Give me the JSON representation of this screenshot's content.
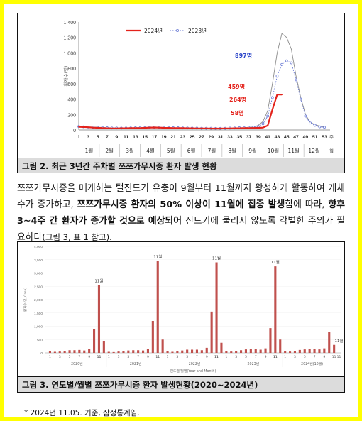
{
  "figure1": {
    "caption": "그림 2. 최근 3년간 주차별 쯔쯔가무시증 환자 발생 현황",
    "chart_data": {
      "type": "line",
      "ylabel": "환자수(명)",
      "ylim": [
        0,
        1400
      ],
      "yticks": [
        0,
        200,
        400,
        600,
        800,
        1000,
        1200,
        1400
      ],
      "x_ticks": [
        "1",
        "3",
        "5",
        "7",
        "9",
        "11",
        "13",
        "15",
        "17",
        "19",
        "21",
        "23",
        "25",
        "27",
        "29",
        "31",
        "33",
        "35",
        "37",
        "39",
        "41",
        "43",
        "45",
        "47",
        "49",
        "51",
        "53"
      ],
      "x_suffix": "주",
      "months": [
        "1월",
        "2월",
        "3월",
        "4월",
        "5월",
        "6월",
        "7월",
        "8월",
        "9월",
        "10월",
        "11월",
        "12월"
      ],
      "x_unit_label": "월",
      "series": [
        {
          "name": "2024년",
          "color": "#e3221b",
          "x": [
            1,
            2,
            3,
            4,
            5,
            6,
            7,
            8,
            9,
            10,
            11,
            12,
            13,
            14,
            15,
            16,
            17,
            18,
            19,
            20,
            21,
            22,
            23,
            24,
            25,
            26,
            27,
            28,
            29,
            30,
            31,
            32,
            33,
            34,
            35,
            36,
            37,
            38,
            39,
            40,
            41,
            42,
            43,
            44
          ],
          "values": [
            40,
            38,
            35,
            30,
            28,
            25,
            22,
            20,
            20,
            22,
            22,
            24,
            25,
            25,
            28,
            30,
            32,
            30,
            28,
            27,
            25,
            25,
            24,
            22,
            22,
            20,
            20,
            20,
            18,
            18,
            18,
            20,
            20,
            22,
            22,
            24,
            25,
            26,
            28,
            30,
            58,
            264,
            459,
            459
          ]
        },
        {
          "name": "2023년",
          "color": "#6f7fd6",
          "x": [
            1,
            2,
            3,
            4,
            5,
            6,
            7,
            8,
            9,
            10,
            11,
            12,
            13,
            14,
            15,
            16,
            17,
            18,
            19,
            20,
            21,
            22,
            23,
            24,
            25,
            26,
            27,
            28,
            29,
            30,
            31,
            32,
            33,
            34,
            35,
            36,
            37,
            38,
            39,
            40,
            41,
            42,
            43,
            44,
            45,
            46,
            47,
            48,
            49,
            50,
            51,
            52,
            53
          ],
          "values": [
            45,
            40,
            38,
            35,
            32,
            30,
            28,
            25,
            25,
            24,
            25,
            26,
            28,
            30,
            30,
            32,
            35,
            34,
            32,
            30,
            28,
            28,
            26,
            25,
            24,
            24,
            22,
            22,
            22,
            20,
            20,
            22,
            24,
            25,
            28,
            30,
            32,
            35,
            45,
            80,
            180,
            420,
            700,
            850,
            897,
            870,
            650,
            400,
            180,
            90,
            60,
            40,
            35
          ]
        },
        {
          "name": "",
          "color": "#8c8c8c",
          "x": [
            1,
            2,
            3,
            4,
            5,
            6,
            7,
            8,
            9,
            10,
            11,
            12,
            13,
            14,
            15,
            16,
            17,
            18,
            19,
            20,
            21,
            22,
            23,
            24,
            25,
            26,
            27,
            28,
            29,
            30,
            31,
            32,
            33,
            34,
            35,
            36,
            37,
            38,
            39,
            40,
            41,
            42,
            43,
            44,
            45,
            46,
            47,
            48,
            49,
            50,
            51,
            52,
            53
          ],
          "values": [
            50,
            45,
            40,
            38,
            35,
            32,
            30,
            28,
            26,
            26,
            28,
            28,
            30,
            30,
            32,
            32,
            34,
            32,
            30,
            28,
            28,
            26,
            26,
            24,
            24,
            22,
            22,
            22,
            22,
            20,
            22,
            22,
            24,
            26,
            28,
            30,
            32,
            40,
            60,
            110,
            250,
            600,
            1000,
            1250,
            1200,
            1050,
            700,
            420,
            200,
            100,
            70,
            50,
            40
          ]
        }
      ],
      "annotations": [
        "897명",
        "459명",
        "264명",
        "58명"
      ]
    }
  },
  "paragraph": {
    "text1": "쯔쯔가무시증을 매개하는 털진드기 유충이 9월부터 11월까지 왕성하게 활동하여 개체 수가 증가하고, ",
    "bold1": "쯔쯔가무시증 환자의 50% 이상이 11월에 집중 발생",
    "text2": "함에 따라, ",
    "bold2": "향후 3~4주 간 환자가 증가할 것으로 예상되어",
    "text3": " 진드기에 물리지 않도록 각별한 주의가 필요하다",
    "ref": "(그림 3, 표 1 참고)."
  },
  "figure2": {
    "caption": "그림 3. 연도별/월별 쯔쯔가무시증 환자 발생현황(2020~2024년)",
    "chart_data": {
      "type": "bar",
      "ylabel": "환자수(명, Case)",
      "xlabel": "연도별/월별(Year and Month)",
      "ylim": [
        0,
        4000
      ],
      "yticks": [
        "0",
        "500",
        "1,000",
        "1,500",
        "2,000",
        "2,500",
        "3,000",
        "3,500",
        "4,000"
      ],
      "color": "#c0504d",
      "years": [
        "2020년",
        "2021년",
        "2022년",
        "2023년",
        "2024년(10월)"
      ],
      "months": [
        "1",
        "3",
        "5",
        "7",
        "9",
        "11"
      ],
      "peak_label": "11월",
      "values": [
        [
          60,
          40,
          50,
          80,
          100,
          100,
          110,
          90,
          150,
          900,
          2550,
          450
        ],
        [
          40,
          30,
          50,
          70,
          90,
          100,
          100,
          90,
          160,
          1200,
          3450,
          500
        ],
        [
          60,
          40,
          70,
          90,
          120,
          120,
          120,
          100,
          190,
          1550,
          3400,
          380
        ],
        [
          70,
          50,
          80,
          100,
          130,
          140,
          140,
          120,
          170,
          930,
          3250,
          500
        ],
        [
          60,
          50,
          80,
          110,
          130,
          140,
          140,
          130,
          170,
          800,
          300
        ]
      ]
    }
  },
  "footnote": "* 2024년 11.05. 기준, 잠정통계임."
}
